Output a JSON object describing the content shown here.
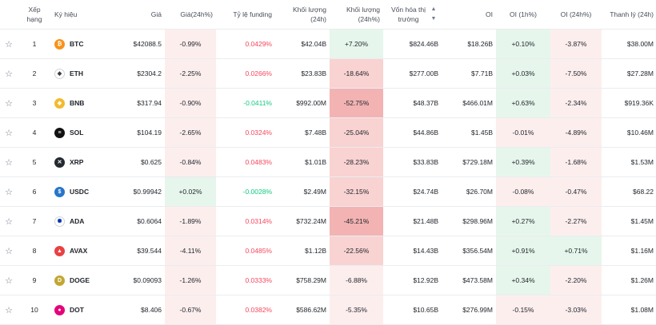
{
  "headers": {
    "rank": "Xếp hạng",
    "symbol": "Ký hiệu",
    "price": "Giá",
    "price_change": "Giá(24h%)",
    "funding": "Tỷ lệ funding",
    "volume": "Khối lượng (24h)",
    "volume_change": "Khối lượng (24h%)",
    "market_cap": "Vốn hóa thị trường",
    "oi": "OI",
    "oi_1h": "OI (1h%)",
    "oi_24h": "OI (24h%)",
    "liquidation": "Thanh lý (24h)"
  },
  "colors": {
    "red_text": "#f6465d",
    "green_text": "#0ecb81",
    "green_bg": "#e6f6ec",
    "red_bg_light": "#fdeeee",
    "red_bg_mid": "#f9d2d2",
    "red_bg_strong": "#f3b3b3"
  },
  "rows": [
    {
      "rank": "1",
      "symbol": "BTC",
      "icon": "btc-icon",
      "icon_color": "#f7931a",
      "icon_glyph": "₿",
      "price": "$42088.5",
      "price_change": "-0.99%",
      "funding": "0.0429%",
      "volume": "$42.04B",
      "volume_change": "+7.20%",
      "market_cap": "$824.46B",
      "oi": "$18.26B",
      "oi_1h": "+0.10%",
      "oi_24h": "-3.87%",
      "liquidation": "$38.00M"
    },
    {
      "rank": "2",
      "symbol": "ETH",
      "icon": "eth-icon",
      "icon_color": "#ffffff",
      "icon_glyph": "◆",
      "price": "$2304.2",
      "price_change": "-2.25%",
      "funding": "0.0266%",
      "volume": "$23.83B",
      "volume_change": "-18.64%",
      "market_cap": "$277.00B",
      "oi": "$7.71B",
      "oi_1h": "+0.03%",
      "oi_24h": "-7.50%",
      "liquidation": "$27.28M"
    },
    {
      "rank": "3",
      "symbol": "BNB",
      "icon": "bnb-icon",
      "icon_color": "#f3ba2f",
      "icon_glyph": "◈",
      "price": "$317.94",
      "price_change": "-0.90%",
      "funding": "-0.0411%",
      "volume": "$992.00M",
      "volume_change": "-52.75%",
      "market_cap": "$48.37B",
      "oi": "$466.01M",
      "oi_1h": "+0.63%",
      "oi_24h": "-2.34%",
      "liquidation": "$919.36K"
    },
    {
      "rank": "4",
      "symbol": "SOL",
      "icon": "sol-icon",
      "icon_color": "#111111",
      "icon_glyph": "≡",
      "price": "$104.19",
      "price_change": "-2.65%",
      "funding": "0.0324%",
      "volume": "$7.48B",
      "volume_change": "-25.04%",
      "market_cap": "$44.86B",
      "oi": "$1.45B",
      "oi_1h": "-0.01%",
      "oi_24h": "-4.89%",
      "liquidation": "$10.46M"
    },
    {
      "rank": "5",
      "symbol": "XRP",
      "icon": "xrp-icon",
      "icon_color": "#23292f",
      "icon_glyph": "✕",
      "price": "$0.625",
      "price_change": "-0.84%",
      "funding": "0.0483%",
      "volume": "$1.01B",
      "volume_change": "-28.23%",
      "market_cap": "$33.83B",
      "oi": "$729.18M",
      "oi_1h": "+0.39%",
      "oi_24h": "-1.68%",
      "liquidation": "$1.53M"
    },
    {
      "rank": "6",
      "symbol": "USDC",
      "icon": "usdc-icon",
      "icon_color": "#2775ca",
      "icon_glyph": "$",
      "price": "$0.99942",
      "price_change": "+0.02%",
      "funding": "-0.0028%",
      "volume": "$2.49M",
      "volume_change": "-32.15%",
      "market_cap": "$24.74B",
      "oi": "$26.70M",
      "oi_1h": "-0.08%",
      "oi_24h": "-0.47%",
      "liquidation": "$68.22"
    },
    {
      "rank": "7",
      "symbol": "ADA",
      "icon": "ada-icon",
      "icon_color": "#ffffff",
      "icon_glyph": "✺",
      "price": "$0.6064",
      "price_change": "-1.89%",
      "funding": "0.0314%",
      "volume": "$732.24M",
      "volume_change": "-45.21%",
      "market_cap": "$21.48B",
      "oi": "$298.96M",
      "oi_1h": "+0.27%",
      "oi_24h": "-2.27%",
      "liquidation": "$1.45M"
    },
    {
      "rank": "8",
      "symbol": "AVAX",
      "icon": "avax-icon",
      "icon_color": "#e84142",
      "icon_glyph": "▲",
      "price": "$39.544",
      "price_change": "-4.11%",
      "funding": "0.0485%",
      "volume": "$1.12B",
      "volume_change": "-22.56%",
      "market_cap": "$14.43B",
      "oi": "$356.54M",
      "oi_1h": "+0.91%",
      "oi_24h": "+0.71%",
      "liquidation": "$1.16M"
    },
    {
      "rank": "9",
      "symbol": "DOGE",
      "icon": "doge-icon",
      "icon_color": "#c2a633",
      "icon_glyph": "D",
      "price": "$0.09093",
      "price_change": "-1.26%",
      "funding": "0.0333%",
      "volume": "$758.29M",
      "volume_change": "-6.88%",
      "market_cap": "$12.92B",
      "oi": "$473.58M",
      "oi_1h": "+0.34%",
      "oi_24h": "-2.20%",
      "liquidation": "$1.26M"
    },
    {
      "rank": "10",
      "symbol": "DOT",
      "icon": "dot-icon",
      "icon_color": "#e6007a",
      "icon_glyph": "●",
      "price": "$8.406",
      "price_change": "-0.67%",
      "funding": "0.0382%",
      "volume": "$586.62M",
      "volume_change": "-5.35%",
      "market_cap": "$10.65B",
      "oi": "$276.99M",
      "oi_1h": "-0.15%",
      "oi_24h": "-3.03%",
      "liquidation": "$1.08M"
    }
  ]
}
